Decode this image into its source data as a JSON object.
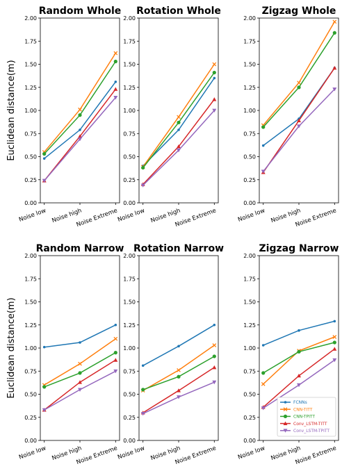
{
  "chart_data": [
    {
      "type": "line",
      "title": "Random Whole",
      "ylabel": "Euclidean distance(m)",
      "categories": [
        "Noise low",
        "Noise high",
        "Noise Extreme"
      ],
      "ylim": [
        0,
        2.0
      ],
      "yticks": [
        "0.00",
        "0.25",
        "0.50",
        "0.75",
        "1.00",
        "1.25",
        "1.50",
        "1.75",
        "2.00"
      ],
      "series": [
        {
          "name": "FCNNs",
          "values": [
            0.48,
            0.79,
            1.31
          ]
        },
        {
          "name": "CNN-TITT",
          "values": [
            0.55,
            1.01,
            1.62
          ]
        },
        {
          "name": "CNN-TPITT",
          "values": [
            0.53,
            0.95,
            1.53
          ]
        },
        {
          "name": "Conv_LSTM-TITT",
          "values": [
            0.24,
            0.72,
            1.23
          ]
        },
        {
          "name": "Conv_LSTM-TPITT",
          "values": [
            0.24,
            0.69,
            1.14
          ]
        }
      ]
    },
    {
      "type": "line",
      "title": "Rotation Whole",
      "ylabel": "",
      "categories": [
        "Noise low",
        "Noise high",
        "Noise Extreme"
      ],
      "ylim": [
        0,
        2.0
      ],
      "yticks": [
        "0.00",
        "0.25",
        "0.50",
        "0.75",
        "1.00",
        "1.25",
        "1.50",
        "1.75",
        "2.00"
      ],
      "series": [
        {
          "name": "FCNNs",
          "values": [
            0.4,
            0.79,
            1.35
          ]
        },
        {
          "name": "CNN-TITT",
          "values": [
            0.39,
            0.93,
            1.5
          ]
        },
        {
          "name": "CNN-TPITT",
          "values": [
            0.38,
            0.87,
            1.41
          ]
        },
        {
          "name": "Conv_LSTM-TITT",
          "values": [
            0.2,
            0.61,
            1.12
          ]
        },
        {
          "name": "Conv_LSTM-TPITT",
          "values": [
            0.19,
            0.57,
            1.0
          ]
        }
      ]
    },
    {
      "type": "line",
      "title": "Zigzag Whole",
      "ylabel": "",
      "categories": [
        "Noise low",
        "Noise high",
        "Noise Extreme"
      ],
      "ylim": [
        0,
        2.0
      ],
      "yticks": [
        "0.00",
        "0.25",
        "0.50",
        "0.75",
        "1.00",
        "1.25",
        "1.50",
        "1.75",
        "2.00"
      ],
      "series": [
        {
          "name": "FCNNs",
          "values": [
            0.62,
            0.91,
            1.46
          ]
        },
        {
          "name": "CNN-TITT",
          "values": [
            0.84,
            1.3,
            1.96
          ]
        },
        {
          "name": "CNN-TPITT",
          "values": [
            0.82,
            1.25,
            1.84
          ]
        },
        {
          "name": "Conv_LSTM-TITT",
          "values": [
            0.33,
            0.89,
            1.46
          ]
        },
        {
          "name": "Conv_LSTM-TPITT",
          "values": [
            0.34,
            0.83,
            1.23
          ]
        }
      ]
    },
    {
      "type": "line",
      "title": "Random Narrow",
      "ylabel": "Euclidean distance(m)",
      "categories": [
        "Noise low",
        "Noise high",
        "Noise Extreme"
      ],
      "ylim": [
        0,
        2.0
      ],
      "yticks": [
        "0.00",
        "0.25",
        "0.50",
        "0.75",
        "1.00",
        "1.25",
        "1.50",
        "1.75",
        "2.00"
      ],
      "series": [
        {
          "name": "FCNNs",
          "values": [
            1.01,
            1.06,
            1.25
          ]
        },
        {
          "name": "CNN-TITT",
          "values": [
            0.6,
            0.83,
            1.1
          ]
        },
        {
          "name": "CNN-TPITT",
          "values": [
            0.58,
            0.73,
            0.95
          ]
        },
        {
          "name": "Conv_LSTM-TITT",
          "values": [
            0.33,
            0.63,
            0.87
          ]
        },
        {
          "name": "Conv_LSTM-TPITT",
          "values": [
            0.33,
            0.55,
            0.75
          ]
        }
      ]
    },
    {
      "type": "line",
      "title": "Rotation Narrow",
      "ylabel": "",
      "categories": [
        "Noise low",
        "Noise high",
        "Noise Extreme"
      ],
      "ylim": [
        0,
        2.0
      ],
      "yticks": [
        "0.00",
        "0.25",
        "0.50",
        "0.75",
        "1.00",
        "1.25",
        "1.50",
        "1.75",
        "2.00"
      ],
      "series": [
        {
          "name": "FCNNs",
          "values": [
            0.81,
            1.02,
            1.25
          ]
        },
        {
          "name": "CNN-TITT",
          "values": [
            0.54,
            0.76,
            1.03
          ]
        },
        {
          "name": "CNN-TPITT",
          "values": [
            0.55,
            0.69,
            0.91
          ]
        },
        {
          "name": "Conv_LSTM-TITT",
          "values": [
            0.3,
            0.54,
            0.79
          ]
        },
        {
          "name": "Conv_LSTM-TPITT",
          "values": [
            0.29,
            0.47,
            0.63
          ]
        }
      ]
    },
    {
      "type": "line",
      "title": "Zigzag Narrow",
      "ylabel": "",
      "categories": [
        "Noise low",
        "Noise high",
        "Noise Extreme"
      ],
      "ylim": [
        0,
        2.0
      ],
      "yticks": [
        "0.00",
        "0.25",
        "0.50",
        "0.75",
        "1.00",
        "1.25",
        "1.50",
        "1.75",
        "2.00"
      ],
      "legend": "lower-right",
      "series": [
        {
          "name": "FCNNs",
          "values": [
            1.03,
            1.19,
            1.29
          ]
        },
        {
          "name": "CNN-TITT",
          "values": [
            0.61,
            0.97,
            1.12
          ]
        },
        {
          "name": "CNN-TPITT",
          "values": [
            0.73,
            0.96,
            1.06
          ]
        },
        {
          "name": "Conv_LSTM-TITT",
          "values": [
            0.36,
            0.7,
            0.99
          ]
        },
        {
          "name": "Conv_LSTM-TPITT",
          "values": [
            0.35,
            0.6,
            0.87
          ]
        }
      ]
    }
  ],
  "series_styles": [
    {
      "color": "#1f77b4",
      "marker": "point"
    },
    {
      "color": "#ff7f0e",
      "marker": "x"
    },
    {
      "color": "#2ca02c",
      "marker": "circle"
    },
    {
      "color": "#d62728",
      "marker": "triangle-up"
    },
    {
      "color": "#9467bd",
      "marker": "triangle-down"
    }
  ]
}
